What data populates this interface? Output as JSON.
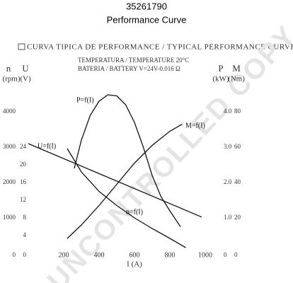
{
  "chart_data": {
    "type": "line",
    "title": "35261790",
    "subtitle": "Performance Curve",
    "header": "CURVA TIPICA DE PERFORMANCE / TYPICAL PERFORMANCE CURVE",
    "temperature": "TEMPERATURA / TEMPERATURE 20°C",
    "battery": "BATERIA / BATTERY V=24V-0.016 Ω",
    "watermark": "UNCONTROLLED COPY",
    "x_label": "I (A)",
    "xlim": [
      0,
      1000
    ],
    "xticks": [
      200,
      400,
      600,
      800,
      1000
    ],
    "axes": [
      {
        "name": "n",
        "unit": "(rpm)",
        "side": "left",
        "lim": [
          0,
          4600
        ],
        "ticks": [
          0,
          1000,
          2000,
          3000,
          4000
        ]
      },
      {
        "name": "U",
        "unit": "(V)",
        "side": "left",
        "lim": [
          0,
          36.8
        ],
        "ticks": [
          0,
          4,
          8,
          12,
          16,
          20,
          24
        ]
      },
      {
        "name": "P",
        "unit": "(kW)",
        "side": "right",
        "lim": [
          0,
          4.6
        ],
        "ticks": [
          0,
          {
            "value": 1,
            "label": "1.0"
          },
          {
            "value": 2,
            "label": "2.0"
          },
          {
            "value": 3,
            "label": "3.0"
          },
          {
            "value": 4,
            "label": "4.0"
          }
        ]
      },
      {
        "name": "M",
        "unit": "(Nm)",
        "side": "right",
        "lim": [
          0,
          92
        ],
        "ticks": [
          0,
          20,
          40,
          60,
          80
        ]
      }
    ],
    "series": [
      {
        "name": "P=f(I)",
        "axis": 2,
        "color": "#111111",
        "x": [
          260,
          300,
          350,
          400,
          450,
          500,
          550,
          600,
          650,
          700,
          750,
          800,
          860
        ],
        "values": [
          2.4,
          3.2,
          3.9,
          4.3,
          4.48,
          4.45,
          4.2,
          3.7,
          3.0,
          2.2,
          1.6,
          1.2,
          0.75
        ]
      },
      {
        "name": "M=f(I)",
        "axis": 3,
        "color": "#111111",
        "x": [
          220,
          300,
          400,
          500,
          600,
          700,
          800,
          870
        ],
        "values": [
          8.4,
          16,
          27,
          39,
          51,
          61,
          69,
          73
        ]
      },
      {
        "name": "U=f(I)",
        "axis": 1,
        "color": "#111111",
        "x": [
          0,
          980
        ],
        "values": [
          24.8,
          8.2
        ]
      },
      {
        "name": "n=f(I)",
        "axis": 0,
        "color": "#111111",
        "x": [
          220,
          300,
          400,
          500,
          600,
          700,
          800,
          890
        ],
        "values": [
          2960,
          2300,
          1750,
          1350,
          1000,
          700,
          420,
          160
        ]
      }
    ]
  }
}
